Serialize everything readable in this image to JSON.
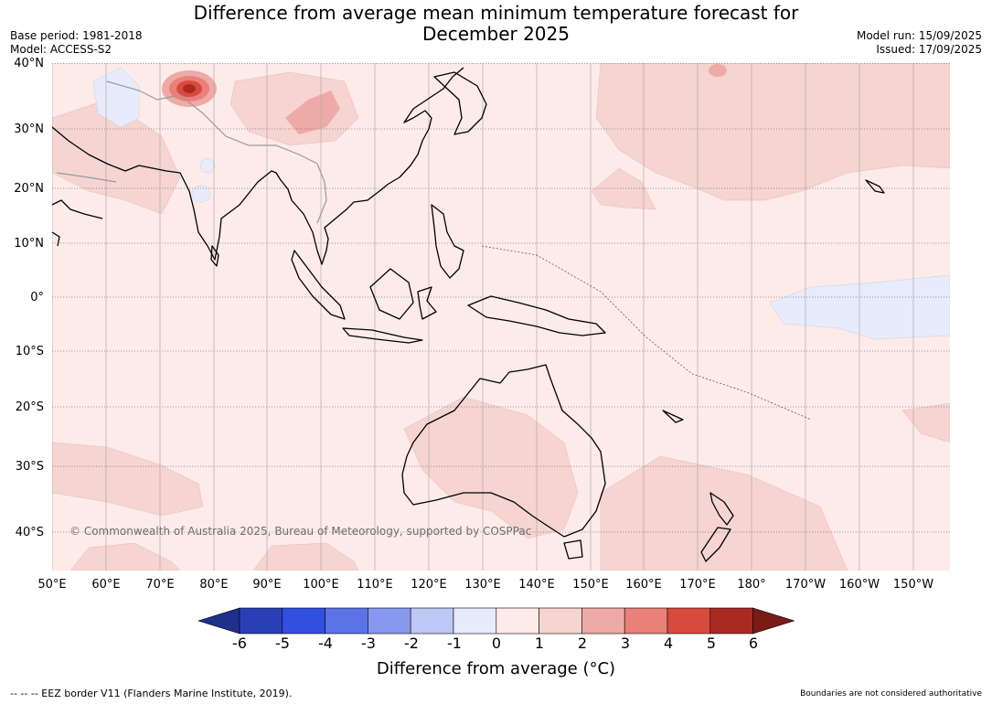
{
  "header": {
    "title_line1": "Difference from average mean minimum temperature forecast for",
    "title_line2": "December 2025",
    "base_period": "Base period: 1981-2018",
    "model": "Model: ACCESS-S2",
    "model_run": "Model run: 15/09/2025",
    "issued": "Issued: 17/09/2025"
  },
  "map": {
    "lat_labels": [
      "40°N",
      "30°N",
      "20°N",
      "10°N",
      "0°",
      "10°S",
      "20°S",
      "30°S",
      "40°S"
    ],
    "lon_labels": [
      "50°E",
      "60°E",
      "70°E",
      "80°E",
      "90°E",
      "100°E",
      "110°E",
      "120°E",
      "130°E",
      "140°E",
      "150°E",
      "160°E",
      "170°E",
      "180°",
      "170°W",
      "160°W",
      "150°W"
    ],
    "copyright": "© Commonwealth of Australia 2025, Bureau of Meteorology, supported by COSPPac",
    "colors": {
      "ocean_base": "#fcebe9",
      "land_outline": "#000000",
      "border": "#9a9a9a",
      "grid": "#555555"
    }
  },
  "colorbar": {
    "ticks": [
      "-6",
      "-5",
      "-4",
      "-3",
      "-2",
      "-1",
      "0",
      "1",
      "2",
      "3",
      "4",
      "5",
      "6"
    ],
    "colors": [
      "#1e2f8c",
      "#2a3fb6",
      "#3150e0",
      "#5b73e6",
      "#8798ee",
      "#bec8f5",
      "#e7ebfb",
      "#fcebe9",
      "#f5d4d1",
      "#eeaaa6",
      "#e98079",
      "#d94a3e",
      "#aa2a22",
      "#7a1b15"
    ],
    "title": "Difference from average (°C)"
  },
  "footer": {
    "eez_note": "--  --  -- EEZ border V11 (Flanders Marine Institute, 2019).",
    "boundaries_note": "Boundaries are not considered authoritative"
  }
}
